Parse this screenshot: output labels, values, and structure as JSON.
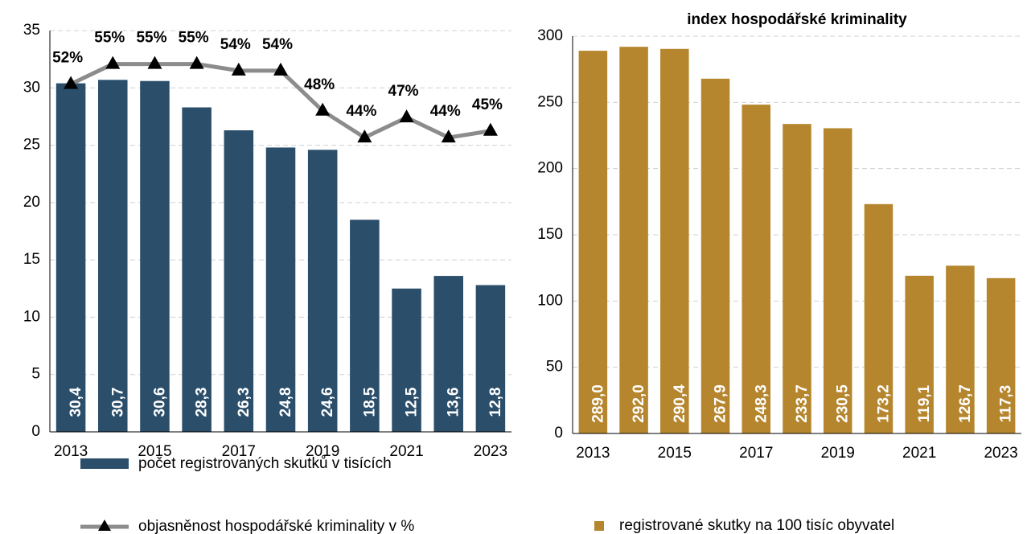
{
  "chart_data": [
    {
      "type": "bar",
      "categories": [
        "2013",
        null,
        "2015",
        null,
        "2017",
        null,
        "2019",
        null,
        "2021",
        null,
        "2023"
      ],
      "ylim": [
        0,
        35
      ],
      "yticks": [
        0,
        5,
        10,
        15,
        20,
        25,
        30,
        35
      ],
      "y2lim": [
        0,
        60
      ],
      "grid": true,
      "series": [
        {
          "name": "počet registrovaných skutků v tisících",
          "type": "bar",
          "color": "#2b4e6b",
          "values": [
            30.4,
            30.7,
            30.6,
            28.3,
            26.3,
            24.8,
            24.6,
            18.5,
            12.5,
            13.6,
            12.8
          ],
          "value_labels": [
            "30,4",
            "30,7",
            "30,6",
            "28,3",
            "26,3",
            "24,8",
            "24,6",
            "18,5",
            "12,5",
            "13,6",
            "12,8"
          ]
        },
        {
          "name": "objasněnost hospodářské kriminality v %",
          "type": "line",
          "axis": "y2",
          "color": "#8c8c8c",
          "values": [
            52,
            55,
            55,
            55,
            54,
            54,
            48,
            44,
            47,
            44,
            45
          ],
          "value_labels": [
            "52%",
            "55%",
            "55%",
            "55%",
            "54%",
            "54%",
            "48%",
            "44%",
            "47%",
            "44%",
            "45%"
          ]
        }
      ]
    },
    {
      "type": "bar",
      "title": "index hospodářské kriminality",
      "categories": [
        "2013",
        null,
        "2015",
        null,
        "2017",
        null,
        "2019",
        null,
        "2021",
        null,
        "2023"
      ],
      "ylim": [
        0,
        300
      ],
      "yticks": [
        0,
        50,
        100,
        150,
        200,
        250,
        300
      ],
      "grid": true,
      "series": [
        {
          "name": "registrované skutky na 100 tisíc obyvatel",
          "type": "bar",
          "color": "#b5862e",
          "values": [
            289.0,
            292.0,
            290.4,
            267.9,
            248.3,
            233.7,
            230.5,
            173.2,
            119.1,
            126.7,
            117.3
          ],
          "value_labels": [
            "289,0",
            "292,0",
            "290,4",
            "267,9",
            "248,3",
            "233,7",
            "230,5",
            "173,2",
            "119,1",
            "126,7",
            "117,3"
          ]
        }
      ]
    }
  ]
}
